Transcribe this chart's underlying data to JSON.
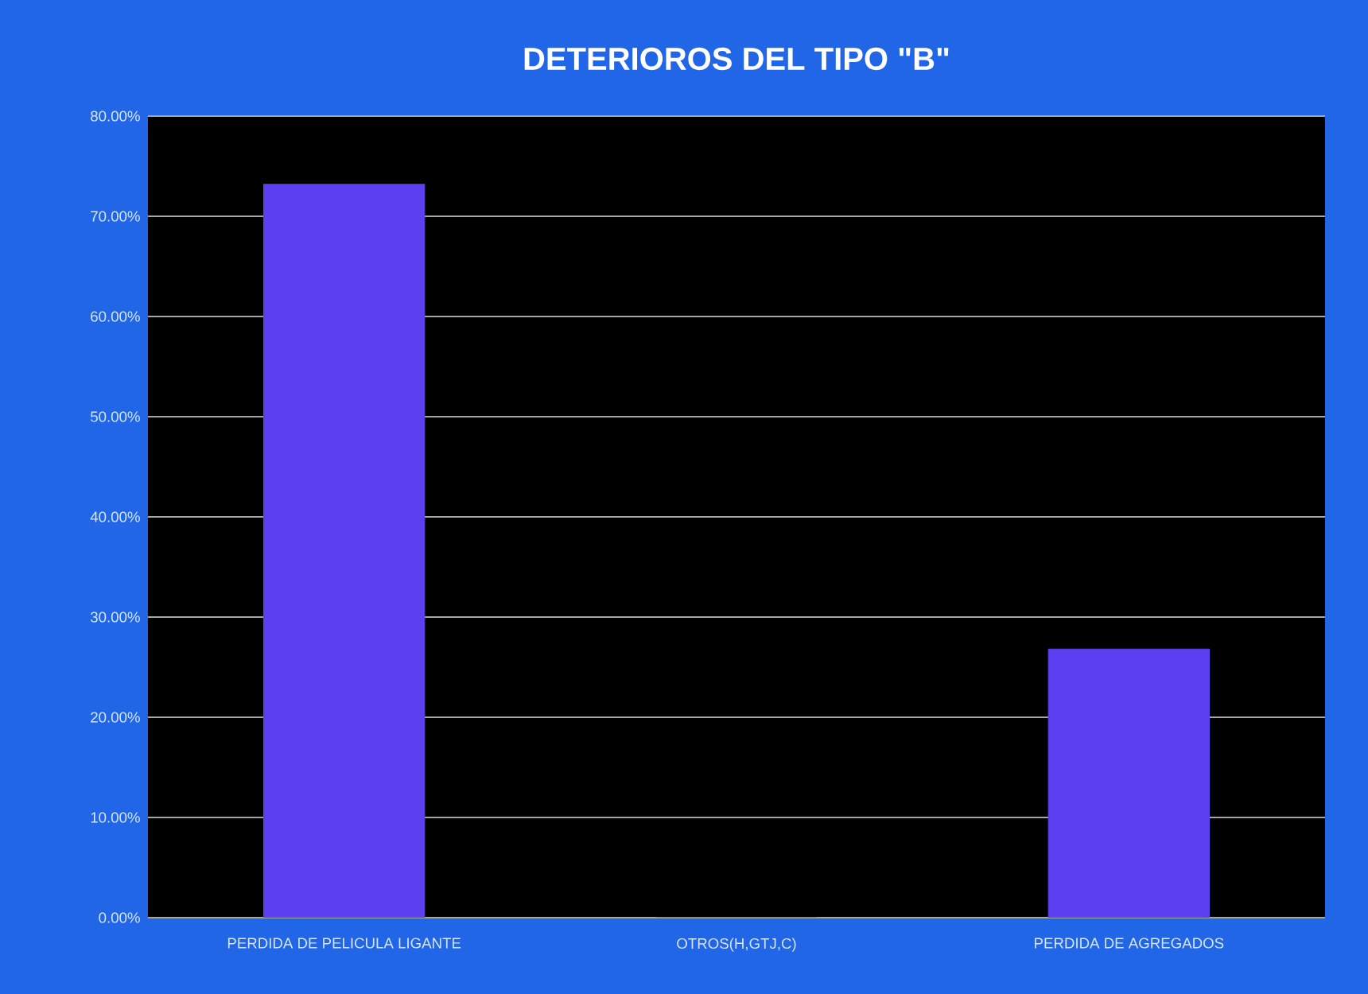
{
  "chart_data": {
    "type": "bar",
    "title": "DETERIOROS DEL TIPO \"B\"",
    "categories": [
      "PERDIDA DE PELICULA LIGANTE",
      "OTROS(H,GTJ,C)",
      "PERDIDA DE AGREGADOS"
    ],
    "values": [
      73.2,
      0,
      26.8
    ],
    "color": "#5b3ff0",
    "ylim": [
      0,
      80
    ],
    "yticks": [
      {
        "value": 0,
        "label": "0.00%"
      },
      {
        "value": 10,
        "label": "10.00%"
      },
      {
        "value": 20,
        "label": "20.00%"
      },
      {
        "value": 30,
        "label": "30.00%"
      },
      {
        "value": 40,
        "label": "40.00%"
      },
      {
        "value": 50,
        "label": "50.00%"
      },
      {
        "value": 60,
        "label": "60.00%"
      },
      {
        "value": 70,
        "label": "70.00%"
      },
      {
        "value": 80,
        "label": "80.00%"
      }
    ],
    "grid": "y"
  }
}
